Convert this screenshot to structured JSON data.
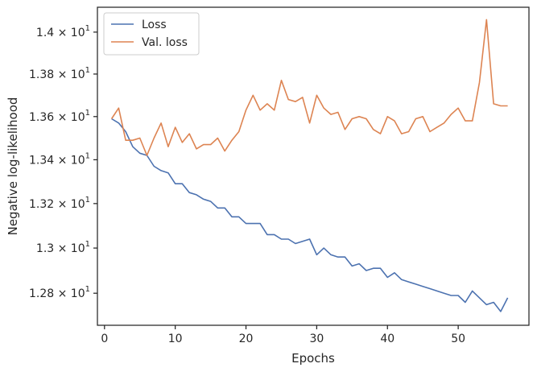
{
  "chart_data": {
    "type": "line",
    "xlabel": "Epochs",
    "ylabel": "Negative log-likelihood",
    "xlim": [
      -1,
      60
    ],
    "ylim": [
      12.66,
      14.12
    ],
    "yscale": "log",
    "grid": false,
    "legend_position": "top-left",
    "x_ticks": [
      0,
      10,
      20,
      30,
      40,
      50
    ],
    "x_tick_labels": [
      "0",
      "10",
      "20",
      "30",
      "40",
      "50"
    ],
    "y_ticks": [
      12.8,
      13.0,
      13.2,
      13.4,
      13.6,
      13.8,
      14.0
    ],
    "y_tick_labels": [
      {
        "mantissa": "1.28",
        "exp": "1"
      },
      {
        "mantissa": "1.3",
        "exp": "1"
      },
      {
        "mantissa": "1.32",
        "exp": "1"
      },
      {
        "mantissa": "1.34",
        "exp": "1"
      },
      {
        "mantissa": "1.36",
        "exp": "1"
      },
      {
        "mantissa": "1.38",
        "exp": "1"
      },
      {
        "mantissa": "1.4",
        "exp": "1"
      }
    ],
    "x": [
      1,
      2,
      3,
      4,
      5,
      6,
      7,
      8,
      9,
      10,
      11,
      12,
      13,
      14,
      15,
      16,
      17,
      18,
      19,
      20,
      21,
      22,
      23,
      24,
      25,
      26,
      27,
      28,
      29,
      30,
      31,
      32,
      33,
      34,
      35,
      36,
      37,
      38,
      39,
      40,
      41,
      42,
      43,
      44,
      45,
      46,
      47,
      48,
      49,
      50,
      51,
      52,
      53,
      54,
      55,
      56,
      57
    ],
    "series": [
      {
        "name": "Loss",
        "color": "#4c72b0",
        "values": [
          13.59,
          13.57,
          13.53,
          13.46,
          13.43,
          13.42,
          13.37,
          13.35,
          13.34,
          13.29,
          13.29,
          13.25,
          13.24,
          13.22,
          13.21,
          13.18,
          13.18,
          13.14,
          13.14,
          13.11,
          13.11,
          13.11,
          13.06,
          13.06,
          13.04,
          13.04,
          13.02,
          13.03,
          13.04,
          12.97,
          13.0,
          12.97,
          12.96,
          12.96,
          12.92,
          12.93,
          12.9,
          12.91,
          12.91,
          12.87,
          12.89,
          12.86,
          12.85,
          12.84,
          12.83,
          12.82,
          12.81,
          12.8,
          12.79,
          12.79,
          12.76,
          12.81,
          12.78,
          12.75,
          12.76,
          12.72,
          12.78
        ]
      },
      {
        "name": "Val. loss",
        "color": "#dd8452",
        "values": [
          13.59,
          13.64,
          13.49,
          13.49,
          13.5,
          13.42,
          13.5,
          13.57,
          13.46,
          13.55,
          13.48,
          13.52,
          13.45,
          13.47,
          13.47,
          13.5,
          13.44,
          13.49,
          13.53,
          13.63,
          13.7,
          13.63,
          13.66,
          13.63,
          13.77,
          13.68,
          13.67,
          13.69,
          13.57,
          13.7,
          13.64,
          13.61,
          13.62,
          13.54,
          13.59,
          13.6,
          13.59,
          13.54,
          13.52,
          13.6,
          13.58,
          13.52,
          13.53,
          13.59,
          13.6,
          13.53,
          13.55,
          13.57,
          13.61,
          13.64,
          13.58,
          13.58,
          13.76,
          14.06,
          13.66,
          13.65,
          13.65
        ]
      }
    ]
  }
}
